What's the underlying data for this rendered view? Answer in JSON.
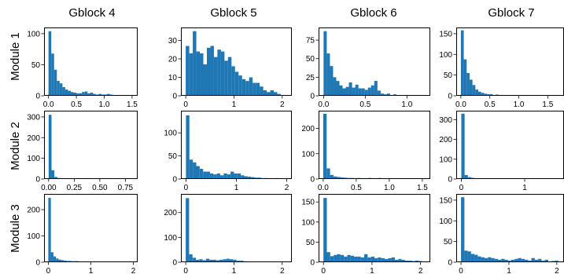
{
  "figure": {
    "columns": [
      "Gblock 4",
      "Gblock 5",
      "Gblock 6",
      "Gblock 7"
    ],
    "rows": [
      "Module 1",
      "Module 2",
      "Module 3"
    ],
    "bar_color": "#1f77b4"
  },
  "chart_data": [
    {
      "type": "bar",
      "row": "Module 1",
      "column": "Gblock 4",
      "xlim": [
        -0.08,
        1.6
      ],
      "ylim": [
        0,
        110
      ],
      "xticks": [
        0.0,
        0.5,
        1.0,
        1.5
      ],
      "xtick_labels": [
        "0.0",
        "0.5",
        "1.0",
        "1.5"
      ],
      "yticks": [
        0,
        50,
        100
      ],
      "ytick_labels": [
        "0",
        "50",
        "100"
      ],
      "bin_start": 0.0,
      "bin_width": 0.05,
      "values": [
        104,
        68,
        42,
        24,
        20,
        14,
        10,
        8,
        6,
        5,
        4,
        4,
        6,
        7,
        4,
        5,
        3,
        2,
        3,
        2,
        2,
        3,
        2,
        1,
        1,
        1,
        0,
        0,
        1,
        1
      ]
    },
    {
      "type": "bar",
      "row": "Module 1",
      "column": "Gblock 5",
      "xlim": [
        -0.1,
        2.2
      ],
      "ylim": [
        0,
        37
      ],
      "xticks": [
        0,
        1,
        2
      ],
      "xtick_labels": [
        "0",
        "1",
        "2"
      ],
      "yticks": [
        0,
        10,
        20,
        30
      ],
      "ytick_labels": [
        "0",
        "10",
        "20",
        "30"
      ],
      "bin_start": 0.0,
      "bin_width": 0.073,
      "values": [
        27,
        23,
        35,
        24,
        23,
        17,
        26,
        27,
        21,
        25,
        24,
        19,
        21,
        16,
        13,
        11,
        9,
        8,
        10,
        7,
        7,
        5,
        3,
        2,
        3,
        2,
        1
      ]
    },
    {
      "type": "bar",
      "row": "Module 1",
      "column": "Gblock 6",
      "xlim": [
        -0.06,
        1.28
      ],
      "ylim": [
        0,
        92
      ],
      "xticks": [
        0.0,
        0.5,
        1.0
      ],
      "xtick_labels": [
        "0.0",
        "0.5",
        "1.0"
      ],
      "yticks": [
        0,
        25,
        50,
        75
      ],
      "ytick_labels": [
        "0",
        "25",
        "50",
        "75"
      ],
      "bin_start": 0.0,
      "bin_width": 0.038,
      "values": [
        87,
        57,
        40,
        25,
        20,
        14,
        10,
        12,
        18,
        11,
        15,
        10,
        10,
        8,
        11,
        14,
        20,
        7,
        3,
        2,
        3,
        1,
        2,
        1,
        1,
        1,
        0,
        1,
        1,
        0,
        1
      ]
    },
    {
      "type": "bar",
      "row": "Module 1",
      "column": "Gblock 7",
      "xlim": [
        -0.08,
        1.78
      ],
      "ylim": [
        0,
        165
      ],
      "xticks": [
        0.0,
        0.5,
        1.0,
        1.5
      ],
      "xtick_labels": [
        "0.0",
        "0.5",
        "1.0",
        "1.5"
      ],
      "yticks": [
        0,
        50,
        100,
        150
      ],
      "ytick_labels": [
        "0",
        "50",
        "100",
        "150"
      ],
      "bin_start": 0.0,
      "bin_width": 0.05,
      "values": [
        158,
        88,
        55,
        39,
        26,
        15,
        10,
        7,
        5,
        4,
        4,
        2,
        3,
        2,
        2,
        1,
        1,
        2,
        1,
        1,
        0,
        1,
        0,
        0,
        1,
        0,
        0,
        1,
        0,
        0
      ]
    },
    {
      "type": "bar",
      "row": "Module 2",
      "column": "Gblock 4",
      "xlim": [
        -0.045,
        0.87
      ],
      "ylim": [
        0,
        330
      ],
      "xticks": [
        0.0,
        0.25,
        0.5,
        0.75
      ],
      "xtick_labels": [
        "0.00",
        "0.25",
        "0.50",
        "0.75"
      ],
      "yticks": [
        0,
        100,
        200,
        300
      ],
      "ytick_labels": [
        "0",
        "100",
        "200",
        "300"
      ],
      "bin_start": 0.0,
      "bin_width": 0.028,
      "values": [
        310,
        42,
        10,
        5,
        4,
        3,
        3,
        2,
        2,
        2,
        1,
        2,
        1,
        1,
        2,
        1,
        1,
        1,
        1,
        1,
        1,
        1,
        1,
        0,
        1,
        0,
        1,
        0,
        1,
        1
      ]
    },
    {
      "type": "bar",
      "row": "Module 2",
      "column": "Gblock 5",
      "xlim": [
        -0.1,
        2.1
      ],
      "ylim": [
        0,
        148
      ],
      "xticks": [
        0,
        1,
        2
      ],
      "xtick_labels": [
        "0",
        "1",
        "2"
      ],
      "yticks": [
        0,
        50,
        100
      ],
      "ytick_labels": [
        "0",
        "50",
        "100"
      ],
      "bin_start": 0.0,
      "bin_width": 0.068,
      "values": [
        138,
        42,
        36,
        28,
        22,
        16,
        16,
        12,
        10,
        12,
        8,
        12,
        10,
        16,
        12,
        12,
        8,
        6,
        5,
        4,
        3,
        3,
        2,
        2,
        1,
        1,
        2,
        1,
        1
      ]
    },
    {
      "type": "bar",
      "row": "Module 2",
      "column": "Gblock 6",
      "xlim": [
        -0.07,
        1.62
      ],
      "ylim": [
        0,
        270
      ],
      "xticks": [
        0.0,
        0.5,
        1.0,
        1.5
      ],
      "xtick_labels": [
        "0.0",
        "0.5",
        "1.0",
        "1.5"
      ],
      "yticks": [
        0,
        100,
        200
      ],
      "ytick_labels": [
        "0",
        "100",
        "200"
      ],
      "bin_start": 0.0,
      "bin_width": 0.052,
      "values": [
        258,
        42,
        16,
        10,
        8,
        6,
        5,
        4,
        4,
        3,
        4,
        3,
        3,
        4,
        3,
        3,
        4,
        3,
        3,
        3,
        2,
        2,
        3,
        2,
        2,
        3,
        2,
        2,
        2,
        1
      ]
    },
    {
      "type": "bar",
      "row": "Module 2",
      "column": "Gblock 7",
      "xlim": [
        -0.08,
        1.62
      ],
      "ylim": [
        0,
        345
      ],
      "xticks": [
        0,
        1
      ],
      "xtick_labels": [
        "0",
        "1"
      ],
      "yticks": [
        0,
        100,
        200,
        300
      ],
      "ytick_labels": [
        "0",
        "100",
        "200",
        "300"
      ],
      "bin_start": 0.0,
      "bin_width": 0.052,
      "values": [
        330,
        20,
        9,
        6,
        4,
        3,
        3,
        2,
        2,
        2,
        2,
        2,
        2,
        2,
        1,
        1,
        1,
        1,
        1,
        1,
        1,
        1,
        1,
        1,
        1,
        1,
        1,
        1,
        1,
        1
      ]
    },
    {
      "type": "bar",
      "row": "Module 3",
      "column": "Gblock 4",
      "xlim": [
        -0.1,
        2.1
      ],
      "ylim": [
        0,
        260
      ],
      "xticks": [
        0,
        1,
        2
      ],
      "xtick_labels": [
        "0",
        "1",
        "2"
      ],
      "yticks": [
        0,
        100,
        200
      ],
      "ytick_labels": [
        "0",
        "100",
        "200"
      ],
      "bin_start": 0.0,
      "bin_width": 0.06,
      "values": [
        245,
        38,
        22,
        14,
        10,
        8,
        6,
        5,
        5,
        4,
        4,
        4,
        3,
        3,
        3,
        3,
        3,
        2,
        2,
        2,
        2,
        2,
        1,
        1,
        1,
        1,
        1,
        1,
        1,
        1
      ]
    },
    {
      "type": "bar",
      "row": "Module 3",
      "column": "Gblock 5",
      "xlim": [
        -0.1,
        2.2
      ],
      "ylim": [
        0,
        275
      ],
      "xticks": [
        0,
        1,
        2
      ],
      "xtick_labels": [
        "0",
        "1",
        "2"
      ],
      "yticks": [
        0,
        100,
        200
      ],
      "ytick_labels": [
        "0",
        "100",
        "200"
      ],
      "bin_start": 0.0,
      "bin_width": 0.07,
      "values": [
        258,
        32,
        18,
        10,
        12,
        8,
        14,
        10,
        10,
        8,
        10,
        12,
        14,
        12,
        10,
        6,
        6,
        4,
        3,
        3,
        2,
        2,
        1,
        1,
        1,
        1,
        1,
        1,
        1,
        1
      ]
    },
    {
      "type": "bar",
      "row": "Module 3",
      "column": "Gblock 6",
      "xlim": [
        -0.1,
        2.2
      ],
      "ylim": [
        0,
        170
      ],
      "xticks": [
        0,
        1,
        2
      ],
      "xtick_labels": [
        "0",
        "1",
        "2"
      ],
      "yticks": [
        0,
        50,
        100,
        150
      ],
      "ytick_labels": [
        "0",
        "50",
        "100",
        "150"
      ],
      "bin_start": 0.0,
      "bin_width": 0.07,
      "values": [
        160,
        25,
        15,
        18,
        20,
        18,
        14,
        18,
        16,
        14,
        14,
        12,
        20,
        12,
        14,
        10,
        12,
        10,
        8,
        10,
        12,
        6,
        8,
        6,
        4,
        4,
        3,
        4,
        3,
        2
      ]
    },
    {
      "type": "bar",
      "row": "Module 3",
      "column": "Gblock 7",
      "xlim": [
        -0.1,
        2.15
      ],
      "ylim": [
        0,
        165
      ],
      "xticks": [
        0,
        1,
        2
      ],
      "xtick_labels": [
        "0",
        "1",
        "2"
      ],
      "yticks": [
        0,
        50,
        100,
        150
      ],
      "ytick_labels": [
        "0",
        "50",
        "100",
        "150"
      ],
      "bin_start": 0.0,
      "bin_width": 0.07,
      "values": [
        157,
        28,
        26,
        20,
        18,
        14,
        12,
        10,
        12,
        10,
        8,
        6,
        8,
        6,
        4,
        6,
        8,
        10,
        8,
        6,
        4,
        10,
        6,
        8,
        4,
        6,
        2,
        3,
        4,
        2
      ]
    }
  ]
}
